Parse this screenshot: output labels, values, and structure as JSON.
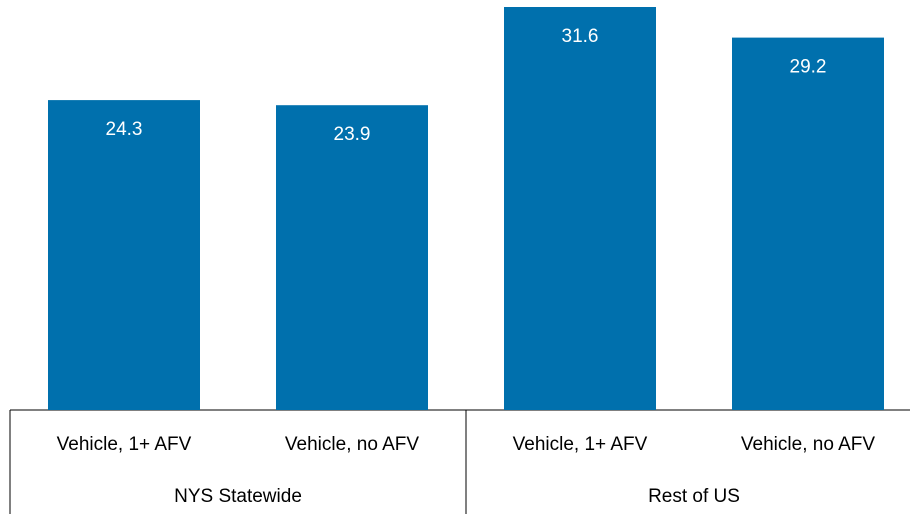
{
  "chart_data": {
    "type": "bar",
    "color": "#0070ad",
    "label_color": "#ffffff",
    "groups": [
      {
        "name": "NYS Statewide",
        "categories": [
          "Vehicle, 1+ AFV",
          "Vehicle, no AFV"
        ],
        "values": [
          24.3,
          23.9
        ]
      },
      {
        "name": "Rest of US",
        "categories": [
          "Vehicle, 1+ AFV",
          "Vehicle, no AFV"
        ],
        "values": [
          31.6,
          29.2
        ]
      }
    ]
  }
}
